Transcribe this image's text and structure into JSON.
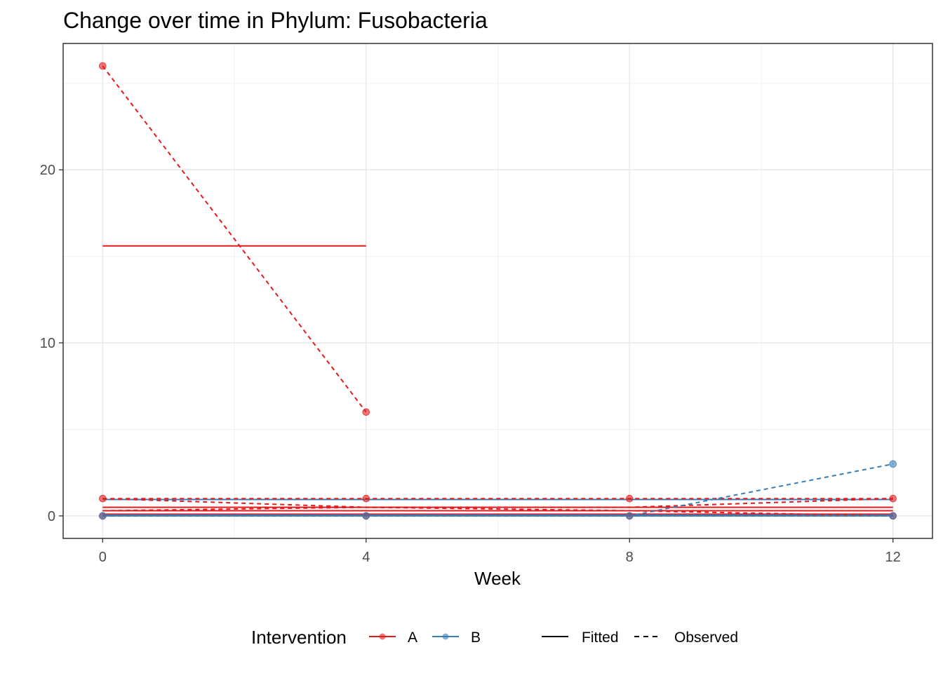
{
  "chart_data": {
    "type": "line",
    "title": "Change over time in Phylum: Fusobacteria",
    "xlabel": "Week",
    "ylabel": "",
    "x_ticks": [
      0,
      4,
      8,
      12
    ],
    "y_ticks": [
      0,
      10,
      20
    ],
    "xlim": [
      -0.6,
      12.6
    ],
    "ylim": [
      -1.3,
      27.3
    ],
    "grid": true,
    "legend_position": "bottom",
    "legend": {
      "title": "Intervention",
      "groups": [
        {
          "name": "A",
          "color": "#E41A1C"
        },
        {
          "name": "B",
          "color": "#377EB8"
        }
      ],
      "linetypes": [
        {
          "name": "Fitted",
          "dash": "solid"
        },
        {
          "name": "Observed",
          "dash": "dashed"
        }
      ]
    },
    "observed_series": [
      {
        "group": "A",
        "x": [
          0,
          4
        ],
        "y": [
          26,
          6
        ]
      },
      {
        "group": "A",
        "x": [
          0,
          4,
          8,
          12
        ],
        "y": [
          1,
          1,
          1,
          1
        ]
      },
      {
        "group": "A",
        "x": [
          0,
          4,
          8,
          12
        ],
        "y": [
          1,
          0.5,
          0.5,
          1
        ]
      },
      {
        "group": "A",
        "x": [
          0,
          4,
          8,
          12
        ],
        "y": [
          0,
          0,
          0,
          0
        ]
      },
      {
        "group": "A",
        "x": [
          0,
          4,
          8,
          12
        ],
        "y": [
          0.3,
          0.5,
          0.3,
          0
        ]
      },
      {
        "group": "B",
        "x": [
          0,
          4,
          8,
          12
        ],
        "y": [
          0,
          0,
          0,
          3
        ]
      },
      {
        "group": "B",
        "x": [
          0,
          4,
          8,
          12
        ],
        "y": [
          0,
          0,
          0,
          0
        ]
      },
      {
        "group": "B",
        "x": [
          0,
          4,
          8,
          12
        ],
        "y": [
          0,
          0,
          0,
          0
        ]
      }
    ],
    "fitted_series": [
      {
        "group": "A",
        "x": [
          0,
          4
        ],
        "y": [
          15.6,
          15.6
        ]
      },
      {
        "group": "A",
        "x": [
          0,
          12
        ],
        "y": [
          0.5,
          0.5
        ]
      },
      {
        "group": "A",
        "x": [
          0,
          12
        ],
        "y": [
          0.3,
          0.3
        ]
      },
      {
        "group": "A",
        "x": [
          0,
          12
        ],
        "y": [
          0.1,
          0.1
        ]
      },
      {
        "group": "B",
        "x": [
          0,
          12
        ],
        "y": [
          0.95,
          0.95
        ]
      },
      {
        "group": "B",
        "x": [
          0,
          12
        ],
        "y": [
          0.05,
          0.05
        ]
      },
      {
        "group": "B",
        "x": [
          0,
          12
        ],
        "y": [
          0,
          0
        ]
      }
    ],
    "points": [
      {
        "group": "A",
        "x": 0,
        "y": 26
      },
      {
        "group": "A",
        "x": 4,
        "y": 6
      },
      {
        "group": "A",
        "x": 0,
        "y": 1
      },
      {
        "group": "A",
        "x": 4,
        "y": 1
      },
      {
        "group": "A",
        "x": 8,
        "y": 1
      },
      {
        "group": "A",
        "x": 12,
        "y": 1
      },
      {
        "group": "A",
        "x": 0,
        "y": 0
      },
      {
        "group": "A",
        "x": 4,
        "y": 0
      },
      {
        "group": "A",
        "x": 8,
        "y": 0
      },
      {
        "group": "A",
        "x": 12,
        "y": 0
      },
      {
        "group": "B",
        "x": 12,
        "y": 3
      },
      {
        "group": "B",
        "x": 0,
        "y": 0
      },
      {
        "group": "B",
        "x": 4,
        "y": 0
      },
      {
        "group": "B",
        "x": 8,
        "y": 0
      },
      {
        "group": "B",
        "x": 12,
        "y": 0
      }
    ]
  }
}
